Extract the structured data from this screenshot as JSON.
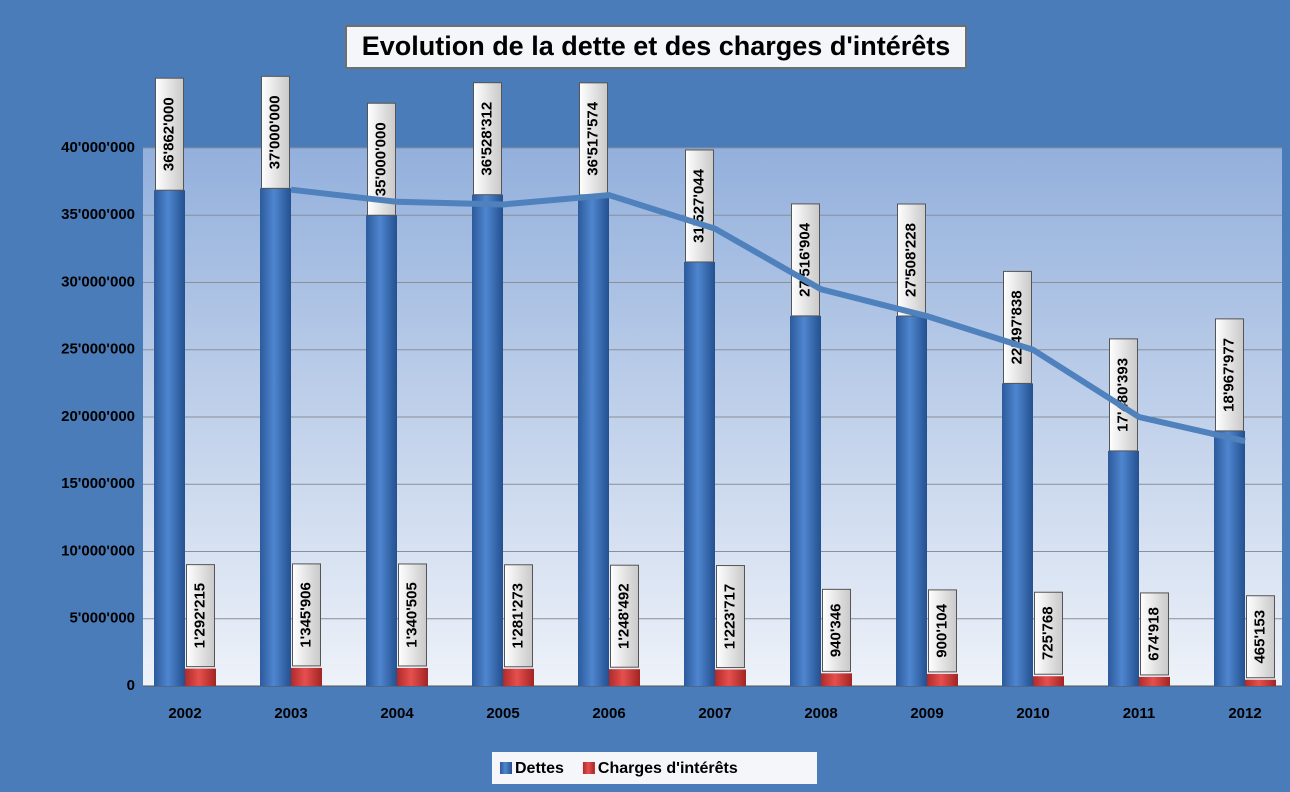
{
  "chart_data": {
    "type": "bar",
    "title": "Evolution de la dette et des charges d'intérêts",
    "categories": [
      "2002",
      "2003",
      "2004",
      "2005",
      "2006",
      "2007",
      "2008",
      "2009",
      "2010",
      "2011",
      "2012"
    ],
    "series": [
      {
        "name": "Dettes",
        "color": "#3f72b8",
        "values": [
          36862000,
          37000000,
          35000000,
          36528312,
          36517574,
          31527044,
          27516904,
          27508228,
          22497838,
          17480393,
          18967977
        ],
        "value_labels": [
          "36'862'000",
          "37'000'000",
          "35'000'000",
          "36'528'312",
          "36'517'574",
          "31'527'044",
          "27'516'904",
          "27'508'228",
          "22'497'838",
          "17'480'393",
          "18'967'977"
        ]
      },
      {
        "name": "Charges d'intérêts",
        "color": "#d9383a",
        "values": [
          1292215,
          1345906,
          1340505,
          1281273,
          1248492,
          1223717,
          940346,
          900104,
          725768,
          674918,
          465153
        ],
        "value_labels": [
          "1'292'215",
          "1'345'906",
          "1'340'505",
          "1'281'273",
          "1'248'492",
          "1'223'717",
          "940'346",
          "900'104",
          "725'768",
          "674'918",
          "465'153"
        ]
      }
    ],
    "trend": {
      "color": "#4f81bd",
      "values": [
        null,
        36900000,
        36000000,
        35800000,
        36500000,
        34000000,
        29500000,
        27500000,
        25000000,
        20000000,
        18200000
      ]
    },
    "ylim": [
      0,
      40000000
    ],
    "yticks": [
      0,
      {
        "value": 5000000,
        "label": "5'000'000"
      },
      {
        "value": 10000000,
        "label": "10'000'000"
      },
      {
        "value": 15000000,
        "label": "15'000'000"
      },
      {
        "value": 20000000,
        "label": "20'000'000"
      },
      {
        "value": 25000000,
        "label": "25'000'000"
      },
      {
        "value": 30000000,
        "label": "30'000'000"
      },
      {
        "value": 35000000,
        "label": "35'000'000"
      },
      {
        "value": 40000000,
        "label": "40'000'000"
      }
    ],
    "grid": true,
    "legend": "bottom"
  }
}
